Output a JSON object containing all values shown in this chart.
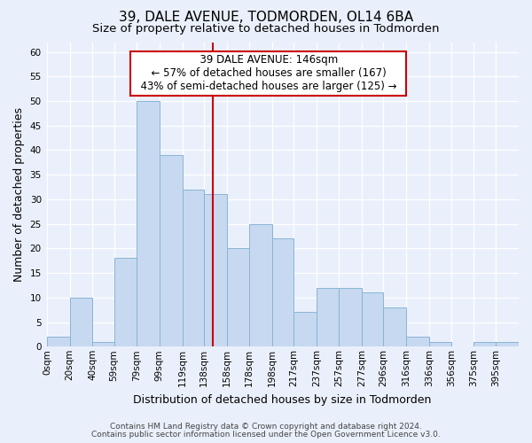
{
  "title": "39, DALE AVENUE, TODMORDEN, OL14 6BA",
  "subtitle": "Size of property relative to detached houses in Todmorden",
  "xlabel": "Distribution of detached houses by size in Todmorden",
  "ylabel": "Number of detached properties",
  "bin_edges": [
    0,
    20,
    40,
    59,
    79,
    99,
    119,
    138,
    158,
    178,
    198,
    217,
    237,
    257,
    277,
    296,
    316,
    336,
    356,
    375,
    395
  ],
  "bin_labels": [
    "0sqm",
    "20sqm",
    "40sqm",
    "59sqm",
    "79sqm",
    "99sqm",
    "119sqm",
    "138sqm",
    "158sqm",
    "178sqm",
    "198sqm",
    "217sqm",
    "237sqm",
    "257sqm",
    "277sqm",
    "296sqm",
    "316sqm",
    "336sqm",
    "356sqm",
    "375sqm",
    "395sqm"
  ],
  "bar_values": [
    2,
    10,
    1,
    18,
    50,
    39,
    32,
    31,
    20,
    25,
    22,
    7,
    12,
    12,
    11,
    8,
    2,
    1,
    0,
    1,
    1
  ],
  "bar_color": "#c6d9f0",
  "bar_edge_color": "#8ab4d4",
  "vline_x": 146,
  "vline_color": "#cc0000",
  "annotation_title": "39 DALE AVENUE: 146sqm",
  "annotation_line1": "← 57% of detached houses are smaller (167)",
  "annotation_line2": "43% of semi-detached houses are larger (125) →",
  "annotation_box_color": "#ffffff",
  "annotation_box_edge_color": "#cc0000",
  "ylim": [
    0,
    62
  ],
  "yticks": [
    0,
    5,
    10,
    15,
    20,
    25,
    30,
    35,
    40,
    45,
    50,
    55,
    60
  ],
  "xlim_left": 0,
  "xlim_right": 395,
  "footer_line1": "Contains HM Land Registry data © Crown copyright and database right 2024.",
  "footer_line2": "Contains public sector information licensed under the Open Government Licence v3.0.",
  "background_color": "#eaf0fb",
  "plot_background_color": "#eaf0fb",
  "grid_color": "#ffffff",
  "title_fontsize": 11,
  "subtitle_fontsize": 9.5,
  "axis_label_fontsize": 9,
  "tick_fontsize": 7.5,
  "footer_fontsize": 6.5,
  "annotation_fontsize": 8.5
}
